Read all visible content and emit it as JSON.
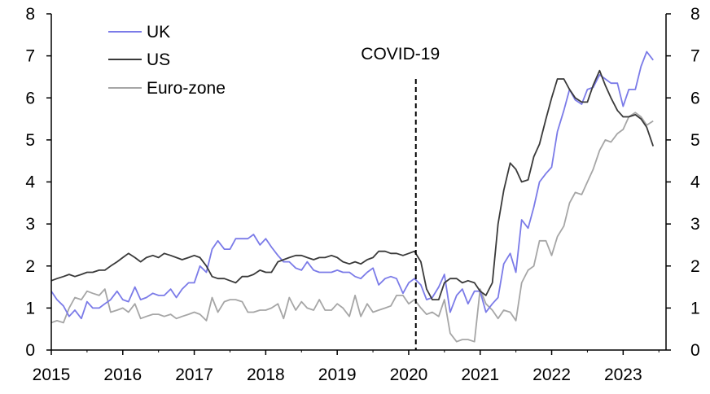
{
  "chart_data": {
    "type": "line",
    "title": "",
    "xlabel": "",
    "ylabel": "",
    "xlim": [
      2015.0,
      2023.6
    ],
    "ylim": [
      0,
      8
    ],
    "y_ticks": [
      0,
      1,
      2,
      3,
      4,
      5,
      6,
      7,
      8
    ],
    "x_ticks": [
      2015,
      2016,
      2017,
      2018,
      2019,
      2020,
      2021,
      2022,
      2023
    ],
    "x_tick_labels": [
      "2015",
      "2016",
      "2017",
      "2018",
      "2019",
      "2020",
      "2021",
      "2022",
      "2023"
    ],
    "grid": false,
    "legend_position": "top-left",
    "annotation": {
      "label": "COVID-19",
      "x": 2020.1
    },
    "series": [
      {
        "name": "UK",
        "color": "#7b7be8",
        "x": [
          2015.0,
          2015.08,
          2015.17,
          2015.25,
          2015.33,
          2015.42,
          2015.5,
          2015.58,
          2015.67,
          2015.75,
          2015.83,
          2015.92,
          2016.0,
          2016.08,
          2016.17,
          2016.25,
          2016.33,
          2016.42,
          2016.5,
          2016.58,
          2016.67,
          2016.75,
          2016.83,
          2016.92,
          2017.0,
          2017.08,
          2017.17,
          2017.25,
          2017.33,
          2017.42,
          2017.5,
          2017.58,
          2017.67,
          2017.75,
          2017.83,
          2017.92,
          2018.0,
          2018.08,
          2018.17,
          2018.25,
          2018.33,
          2018.42,
          2018.5,
          2018.58,
          2018.67,
          2018.75,
          2018.83,
          2018.92,
          2019.0,
          2019.08,
          2019.17,
          2019.25,
          2019.33,
          2019.42,
          2019.5,
          2019.58,
          2019.67,
          2019.75,
          2019.83,
          2019.92,
          2020.0,
          2020.08,
          2020.17,
          2020.25,
          2020.33,
          2020.42,
          2020.5,
          2020.58,
          2020.67,
          2020.75,
          2020.83,
          2020.92,
          2021.0,
          2021.08,
          2021.17,
          2021.25,
          2021.33,
          2021.42,
          2021.5,
          2021.58,
          2021.67,
          2021.75,
          2021.83,
          2021.92,
          2022.0,
          2022.08,
          2022.17,
          2022.25,
          2022.33,
          2022.42,
          2022.5,
          2022.58,
          2022.67,
          2022.75,
          2022.83,
          2022.92,
          2023.0,
          2023.08,
          2023.17,
          2023.25,
          2023.33,
          2023.42
        ],
        "values": [
          1.4,
          1.2,
          1.05,
          0.8,
          0.95,
          0.75,
          1.15,
          1.0,
          1.0,
          1.1,
          1.2,
          1.4,
          1.2,
          1.15,
          1.5,
          1.2,
          1.25,
          1.35,
          1.3,
          1.3,
          1.45,
          1.25,
          1.45,
          1.6,
          1.6,
          2.0,
          1.85,
          2.4,
          2.6,
          2.4,
          2.4,
          2.65,
          2.65,
          2.65,
          2.75,
          2.5,
          2.65,
          2.45,
          2.25,
          2.1,
          2.1,
          1.95,
          1.9,
          2.1,
          1.9,
          1.85,
          1.85,
          1.85,
          1.9,
          1.85,
          1.85,
          1.75,
          1.7,
          1.85,
          1.95,
          1.55,
          1.7,
          1.75,
          1.7,
          1.35,
          1.6,
          1.7,
          1.55,
          1.2,
          1.25,
          1.5,
          1.8,
          0.9,
          1.3,
          1.45,
          1.1,
          1.4,
          1.4,
          0.9,
          1.1,
          1.25,
          2.05,
          2.3,
          1.85,
          3.1,
          2.9,
          3.4,
          4.0,
          4.2,
          4.35,
          5.2,
          5.7,
          6.2,
          5.95,
          5.85,
          6.2,
          6.25,
          6.55,
          6.45,
          6.35,
          6.35,
          5.8,
          6.2,
          6.2,
          6.75,
          7.1,
          6.9
        ]
      },
      {
        "name": "US",
        "color": "#3a3a3a",
        "x": [
          2015.0,
          2015.08,
          2015.17,
          2015.25,
          2015.33,
          2015.42,
          2015.5,
          2015.58,
          2015.67,
          2015.75,
          2015.83,
          2015.92,
          2016.0,
          2016.08,
          2016.17,
          2016.25,
          2016.33,
          2016.42,
          2016.5,
          2016.58,
          2016.67,
          2016.75,
          2016.83,
          2016.92,
          2017.0,
          2017.08,
          2017.17,
          2017.25,
          2017.33,
          2017.42,
          2017.5,
          2017.58,
          2017.67,
          2017.75,
          2017.83,
          2017.92,
          2018.0,
          2018.08,
          2018.17,
          2018.25,
          2018.33,
          2018.42,
          2018.5,
          2018.58,
          2018.67,
          2018.75,
          2018.83,
          2018.92,
          2019.0,
          2019.08,
          2019.17,
          2019.25,
          2019.33,
          2019.42,
          2019.5,
          2019.58,
          2019.67,
          2019.75,
          2019.83,
          2019.92,
          2020.0,
          2020.08,
          2020.17,
          2020.25,
          2020.33,
          2020.42,
          2020.5,
          2020.58,
          2020.67,
          2020.75,
          2020.83,
          2020.92,
          2021.0,
          2021.08,
          2021.17,
          2021.25,
          2021.33,
          2021.42,
          2021.5,
          2021.58,
          2021.67,
          2021.75,
          2021.83,
          2021.92,
          2022.0,
          2022.08,
          2022.17,
          2022.25,
          2022.33,
          2022.42,
          2022.5,
          2022.58,
          2022.67,
          2022.75,
          2022.83,
          2022.92,
          2023.0,
          2023.08,
          2023.17,
          2023.25,
          2023.33,
          2023.42
        ],
        "values": [
          1.65,
          1.7,
          1.75,
          1.8,
          1.75,
          1.8,
          1.85,
          1.85,
          1.9,
          1.9,
          2.0,
          2.1,
          2.2,
          2.3,
          2.2,
          2.1,
          2.2,
          2.25,
          2.2,
          2.3,
          2.25,
          2.2,
          2.15,
          2.2,
          2.25,
          2.2,
          2.0,
          1.75,
          1.7,
          1.7,
          1.65,
          1.6,
          1.75,
          1.75,
          1.8,
          1.9,
          1.85,
          1.85,
          2.1,
          2.15,
          2.2,
          2.25,
          2.25,
          2.2,
          2.15,
          2.2,
          2.2,
          2.25,
          2.2,
          2.1,
          2.05,
          2.1,
          2.05,
          2.15,
          2.2,
          2.35,
          2.35,
          2.3,
          2.3,
          2.25,
          2.3,
          2.35,
          2.1,
          1.45,
          1.2,
          1.2,
          1.6,
          1.7,
          1.7,
          1.6,
          1.65,
          1.6,
          1.4,
          1.3,
          1.6,
          3.0,
          3.8,
          4.45,
          4.3,
          4.0,
          4.05,
          4.6,
          4.9,
          5.5,
          6.0,
          6.45,
          6.45,
          6.2,
          6.0,
          5.9,
          5.9,
          6.3,
          6.65,
          6.3,
          6.0,
          5.7,
          5.55,
          5.55,
          5.6,
          5.5,
          5.3,
          4.85
        ]
      },
      {
        "name": "Euro-zone",
        "color": "#a6a6a6",
        "x": [
          2015.0,
          2015.08,
          2015.17,
          2015.25,
          2015.33,
          2015.42,
          2015.5,
          2015.58,
          2015.67,
          2015.75,
          2015.83,
          2015.92,
          2016.0,
          2016.08,
          2016.17,
          2016.25,
          2016.33,
          2016.42,
          2016.5,
          2016.58,
          2016.67,
          2016.75,
          2016.83,
          2016.92,
          2017.0,
          2017.08,
          2017.17,
          2017.25,
          2017.33,
          2017.42,
          2017.5,
          2017.58,
          2017.67,
          2017.75,
          2017.83,
          2017.92,
          2018.0,
          2018.08,
          2018.17,
          2018.25,
          2018.33,
          2018.42,
          2018.5,
          2018.58,
          2018.67,
          2018.75,
          2018.83,
          2018.92,
          2019.0,
          2019.08,
          2019.17,
          2019.25,
          2019.33,
          2019.42,
          2019.5,
          2019.58,
          2019.67,
          2019.75,
          2019.83,
          2019.92,
          2020.0,
          2020.08,
          2020.17,
          2020.25,
          2020.33,
          2020.42,
          2020.5,
          2020.58,
          2020.67,
          2020.75,
          2020.83,
          2020.92,
          2021.0,
          2021.08,
          2021.17,
          2021.25,
          2021.33,
          2021.42,
          2021.5,
          2021.58,
          2021.67,
          2021.75,
          2021.83,
          2021.92,
          2022.0,
          2022.08,
          2022.17,
          2022.25,
          2022.33,
          2022.42,
          2022.5,
          2022.58,
          2022.67,
          2022.75,
          2022.83,
          2022.92,
          2023.0,
          2023.08,
          2023.17,
          2023.25,
          2023.33,
          2023.42
        ],
        "values": [
          0.65,
          0.7,
          0.65,
          1.0,
          1.25,
          1.2,
          1.4,
          1.35,
          1.3,
          1.45,
          0.9,
          0.95,
          1.0,
          0.9,
          1.1,
          0.75,
          0.8,
          0.85,
          0.85,
          0.8,
          0.85,
          0.75,
          0.8,
          0.85,
          0.9,
          0.85,
          0.7,
          1.25,
          0.9,
          1.15,
          1.2,
          1.2,
          1.15,
          0.9,
          0.9,
          0.95,
          0.95,
          1.0,
          1.1,
          0.75,
          1.25,
          0.95,
          1.15,
          1.0,
          0.95,
          1.2,
          0.95,
          0.95,
          1.1,
          1.0,
          0.8,
          1.3,
          0.8,
          1.1,
          0.9,
          0.95,
          1.0,
          1.05,
          1.3,
          1.3,
          1.1,
          1.2,
          1.0,
          0.85,
          0.9,
          0.8,
          1.2,
          0.4,
          0.2,
          0.25,
          0.25,
          0.2,
          1.45,
          1.1,
          0.95,
          0.75,
          0.95,
          0.9,
          0.7,
          1.6,
          1.9,
          2.0,
          2.6,
          2.6,
          2.25,
          2.7,
          2.95,
          3.5,
          3.75,
          3.7,
          4.0,
          4.3,
          4.75,
          5.0,
          4.95,
          5.15,
          5.25,
          5.55,
          5.65,
          5.55,
          5.35,
          5.45
        ]
      }
    ]
  }
}
